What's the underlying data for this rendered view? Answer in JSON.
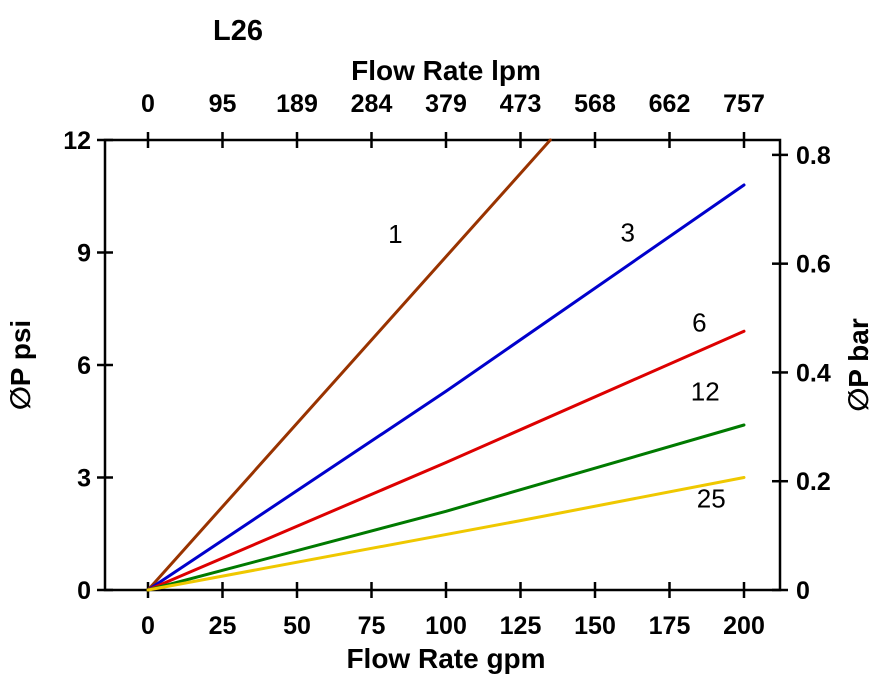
{
  "chart_data": {
    "type": "line",
    "title": "L26",
    "top_axis": {
      "label": "Flow Rate lpm",
      "ticks": [
        0,
        95,
        189,
        284,
        379,
        473,
        568,
        662,
        757
      ],
      "range": [
        0,
        757
      ]
    },
    "bottom_axis": {
      "label": "Flow Rate gpm",
      "ticks": [
        0,
        25,
        50,
        75,
        100,
        125,
        150,
        175,
        200
      ],
      "range": [
        0,
        200
      ]
    },
    "left_axis": {
      "label": "∅P psi",
      "ticks": [
        0,
        3,
        6,
        9,
        12
      ],
      "range": [
        0,
        12
      ]
    },
    "right_axis": {
      "label": "∅P bar",
      "ticks": [
        0,
        0.2,
        0.4,
        0.6,
        0.8
      ],
      "range": [
        0,
        0.827
      ],
      "psi_per_bar": 14.5038
    },
    "grid": false,
    "legend_position": "inline-labels",
    "series": [
      {
        "name": "1",
        "color": "#993300",
        "points": [
          [
            0,
            0
          ],
          [
            135,
            12
          ]
        ],
        "label_pos": [
          83,
          9.25
        ]
      },
      {
        "name": "3",
        "color": "#0000CC",
        "points": [
          [
            0,
            0
          ],
          [
            100,
            5.3
          ],
          [
            200,
            10.8
          ]
        ],
        "label_pos": [
          161,
          9.3
        ]
      },
      {
        "name": "6",
        "color": "#DD0000",
        "points": [
          [
            0,
            0
          ],
          [
            100,
            3.4
          ],
          [
            200,
            6.9
          ]
        ],
        "label_pos": [
          185,
          6.9
        ]
      },
      {
        "name": "12",
        "color": "#007A00",
        "points": [
          [
            0,
            0
          ],
          [
            100,
            2.1
          ],
          [
            200,
            4.4
          ]
        ],
        "label_pos": [
          187,
          5.05
        ]
      },
      {
        "name": "25",
        "color": "#EFC800",
        "points": [
          [
            0,
            0
          ],
          [
            125,
            1.85
          ],
          [
            200,
            3.0
          ]
        ],
        "label_pos": [
          189,
          2.2
        ]
      }
    ]
  }
}
